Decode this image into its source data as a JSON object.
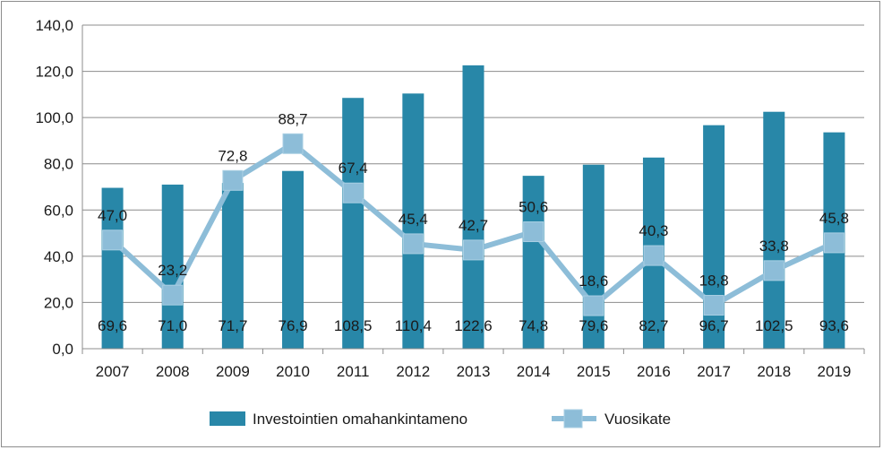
{
  "chart_data": {
    "type": "bar",
    "categories": [
      "2007",
      "2008",
      "2009",
      "2010",
      "2011",
      "2012",
      "2013",
      "2014",
      "2015",
      "2016",
      "2017",
      "2018",
      "2019"
    ],
    "ylim": [
      0,
      140
    ],
    "y_ticks": [
      "0,0",
      "20,0",
      "40,0",
      "60,0",
      "80,0",
      "100,0",
      "120,0",
      "140,0"
    ],
    "grid": true,
    "legend_position": "bottom",
    "series": [
      {
        "name": "Investointien omahankintameno",
        "kind": "bar",
        "color": "#2887a8",
        "values": [
          69.6,
          71.0,
          71.7,
          76.9,
          108.5,
          110.4,
          122.6,
          74.8,
          79.6,
          82.7,
          96.7,
          102.5,
          93.6
        ],
        "labels": [
          "69,6",
          "71,0",
          "71,7",
          "76,9",
          "108,5",
          "110,4",
          "122,6",
          "74,8",
          "79,6",
          "82,7",
          "96,7",
          "102,5",
          "93,6"
        ]
      },
      {
        "name": "Vuosikate",
        "kind": "line",
        "color": "#8dbdd8",
        "values": [
          47.0,
          23.2,
          72.8,
          88.7,
          67.4,
          45.4,
          42.7,
          50.6,
          18.6,
          40.3,
          18.8,
          33.8,
          45.8
        ],
        "labels": [
          "47,0",
          "23,2",
          "72,8",
          "88,7",
          "67,4",
          "45,4",
          "42,7",
          "50,6",
          "18,6",
          "40,3",
          "18,8",
          "33,8",
          "45,8"
        ]
      }
    ]
  }
}
